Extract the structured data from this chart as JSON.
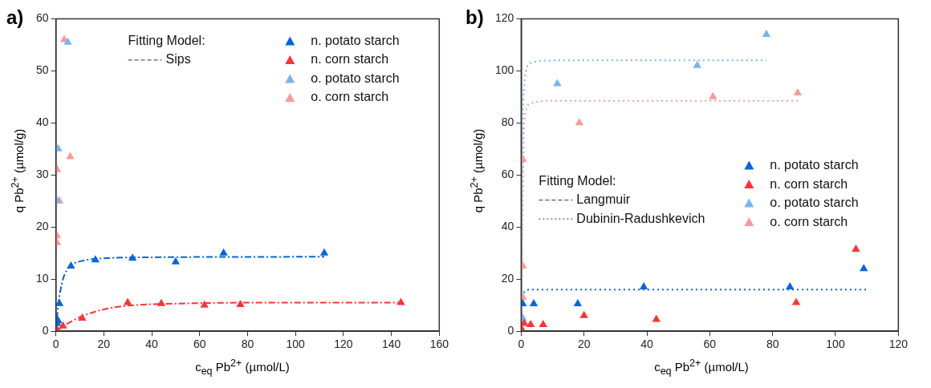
{
  "chart_data": [
    {
      "type": "scatter",
      "title": "a)",
      "xlabel": "c$_{eq}$ Pb$^{2+}$ (µmol/L)",
      "ylabel": "q Pb$^{2+}$ (µmol/g)",
      "xlim": [
        0,
        160
      ],
      "ylim": [
        0,
        60
      ],
      "xticks": [
        0,
        20,
        40,
        60,
        80,
        100,
        120,
        140,
        160
      ],
      "yticks": [
        0,
        10,
        20,
        30,
        40,
        50,
        60
      ],
      "grid": false,
      "legend": "top right",
      "marker": "triangle",
      "annotations": [
        "Fitting Model:",
        "Sips"
      ],
      "series": [
        {
          "name": "n. potato starch",
          "color": "#0066dd",
          "x": [
            0.5,
            1,
            1.5,
            6.3,
            16.5,
            32,
            50,
            70,
            112
          ],
          "values": [
            1.5,
            2,
            5.3,
            12.5,
            13.7,
            14,
            13.3,
            15,
            15
          ]
        },
        {
          "name": "n. corn starch",
          "color": "#ff3333",
          "x": [
            0.5,
            3,
            11,
            30,
            44,
            62,
            77,
            144
          ],
          "values": [
            0.3,
            1,
            2.5,
            5.5,
            5.3,
            5,
            5.1,
            5.5
          ]
        },
        {
          "name": "o. potato starch",
          "color": "#77b4f0",
          "x": [
            0.5,
            1,
            5
          ],
          "values": [
            25,
            35,
            55.5
          ]
        },
        {
          "name": "o. corn starch",
          "color": "#f99a9a",
          "x": [
            0.5,
            0.5,
            0.5,
            1.5,
            3.5,
            6
          ],
          "values": [
            17,
            18.3,
            31,
            25,
            56,
            33.5
          ]
        },
        {
          "type": "line",
          "marker": "none",
          "line_style": "dashed",
          "color": "#0066dd",
          "x": [
            0,
            1,
            3,
            6,
            10,
            20,
            40,
            112
          ],
          "values": [
            0,
            5,
            10,
            12.5,
            13.4,
            14,
            14.2,
            14.3
          ]
        },
        {
          "type": "line",
          "marker": "none",
          "line_style": "dashed",
          "color": "#ff3333",
          "x": [
            0,
            5,
            10,
            20,
            30,
            50,
            100,
            144
          ],
          "values": [
            0,
            1.5,
            2.7,
            4.2,
            4.9,
            5.3,
            5.5,
            5.5
          ]
        }
      ]
    },
    {
      "type": "scatter",
      "title": "b)",
      "xlabel": "c$_{eq}$ Pb$^{2+}$ (µmol/L)",
      "ylabel": "q Pb$^{2+}$ (µmol/g)",
      "xlim": [
        0,
        120
      ],
      "ylim": [
        0,
        120
      ],
      "xticks": [
        0,
        20,
        40,
        60,
        80,
        100,
        120
      ],
      "yticks": [
        0,
        20,
        40,
        60,
        80,
        100,
        120
      ],
      "grid": false,
      "legend": "right",
      "marker": "triangle",
      "annotations": [
        "Fitting Model:",
        "Langmuir",
        "Dubinin-Radushkevich"
      ],
      "series": [
        {
          "name": "n. potato starch",
          "color": "#0066dd",
          "x": [
            0.5,
            4,
            18,
            39,
            85.5,
            109
          ],
          "values": [
            10.5,
            10.5,
            10.5,
            17,
            17,
            24
          ]
        },
        {
          "name": "n. corn starch",
          "color": "#ff3333",
          "x": [
            0.3,
            1,
            3,
            7,
            20,
            43,
            87.5,
            106.5
          ],
          "values": [
            0.5,
            3,
            2.5,
            2.5,
            6,
            4.5,
            11,
            31.5
          ]
        },
        {
          "name": "o. potato starch",
          "color": "#77b4f0",
          "x": [
            0.5,
            11.5,
            56,
            78
          ],
          "values": [
            5,
            95,
            102,
            114
          ]
        },
        {
          "name": "o. corn starch",
          "color": "#f99a9a",
          "x": [
            0.5,
            0.5,
            0.5,
            18.5,
            61,
            88
          ],
          "values": [
            13,
            25,
            66,
            80,
            90,
            91.5
          ]
        },
        {
          "type": "line",
          "marker": "none",
          "line_style": "dotted",
          "color": "#77b4f0",
          "x": [
            0,
            0.3,
            1,
            3,
            10,
            78
          ],
          "values": [
            0,
            60,
            95,
            103,
            104,
            104
          ]
        },
        {
          "type": "line",
          "marker": "none",
          "line_style": "dotted",
          "color": "#f99a9a",
          "x": [
            0,
            1,
            3,
            10,
            88
          ],
          "values": [
            0,
            80,
            87.5,
            88.5,
            88.5
          ]
        },
        {
          "type": "line",
          "marker": "none",
          "line_style": "dotted",
          "color": "#0066dd",
          "x": [
            0,
            0.2,
            1,
            3,
            110
          ],
          "values": [
            0,
            10,
            15,
            16,
            16
          ]
        }
      ]
    }
  ]
}
